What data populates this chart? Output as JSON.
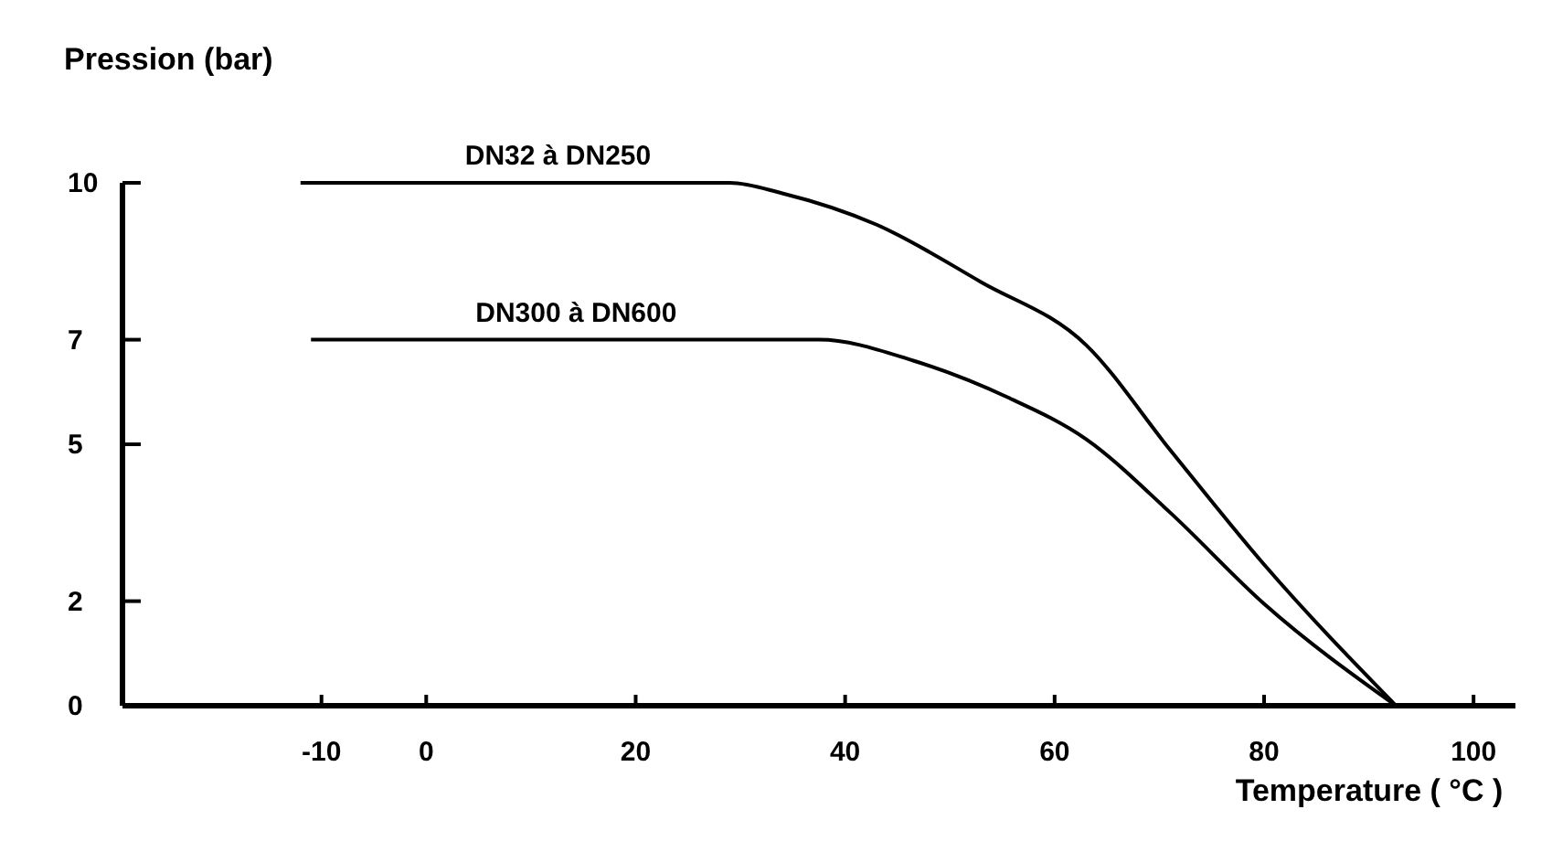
{
  "chart_data": {
    "type": "line",
    "ylabel": "Pression (bar)",
    "xlabel": "Temperature ( °C )",
    "xlim": [
      -29,
      104
    ],
    "xticks": [
      -10,
      0,
      20,
      40,
      60,
      80,
      100
    ],
    "ylim": [
      0,
      10
    ],
    "yticks": [
      0,
      2,
      5,
      7,
      10
    ],
    "grid": false,
    "marker": "none",
    "line_style": "solid",
    "series": [
      {
        "name": "DN32 à DN250",
        "color": "#000000",
        "x": [
          -12,
          0,
          20,
          29,
          34,
          43,
          53,
          63,
          71,
          80,
          92.6
        ],
        "values": [
          10,
          10,
          10,
          10,
          9.8,
          9.2,
          8.1,
          6.9,
          4.9,
          2.7,
          0
        ]
      },
      {
        "name": "DN300 à DN600",
        "color": "#000000",
        "x": [
          -11,
          0,
          20,
          37.5,
          46.5,
          55.5,
          63,
          71,
          80,
          92.6
        ],
        "values": [
          7,
          7,
          7,
          7,
          6.6,
          5.9,
          5.1,
          3.7,
          1.95,
          0
        ]
      }
    ]
  }
}
